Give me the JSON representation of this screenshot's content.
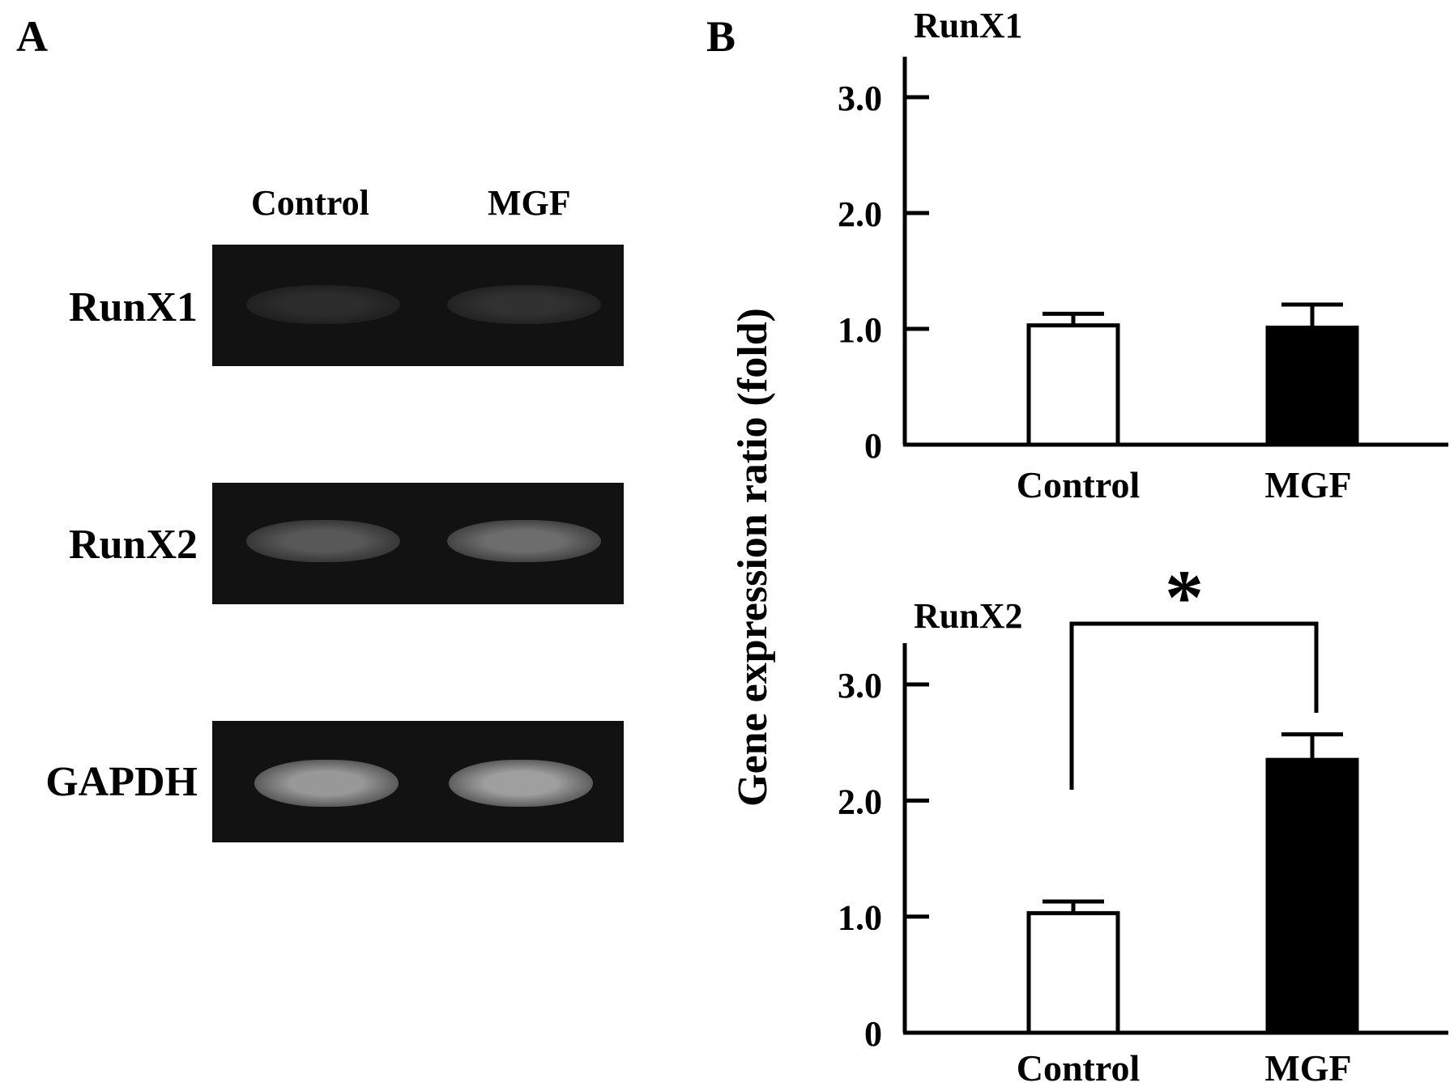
{
  "panels": {
    "a": "A",
    "b": "B"
  },
  "gel": {
    "lanes": [
      "Control",
      "MGF"
    ],
    "rows": [
      {
        "gene": "RunX1",
        "bands": [
          0.12,
          0.14
        ]
      },
      {
        "gene": "RunX2",
        "bands": [
          0.32,
          0.42
        ]
      },
      {
        "gene": "GAPDH",
        "bands": [
          0.62,
          0.65
        ]
      }
    ]
  },
  "colors": {
    "control_fill": "#ffffff",
    "mgf_fill": "#000000",
    "gel_bg": "#121212",
    "band": "#d9d9d9"
  },
  "y_axis_label": "Gene expression ratio (fold)",
  "chart_data": [
    {
      "type": "bar",
      "title": "RunX1",
      "categories": [
        "Control",
        "MGF"
      ],
      "values": [
        1.03,
        1.01
      ],
      "errors": [
        0.1,
        0.2
      ],
      "ylim": [
        0,
        3.3
      ],
      "yticks": [
        0,
        1.0,
        2.0,
        3.0
      ],
      "ytick_labels": [
        "0",
        "1.0",
        "2.0",
        "3.0"
      ],
      "annotation": null
    },
    {
      "type": "bar",
      "title": "RunX2",
      "categories": [
        "Control",
        "MGF"
      ],
      "values": [
        1.03,
        2.35
      ],
      "errors": [
        0.1,
        0.22
      ],
      "ylim": [
        0,
        3.3
      ],
      "yticks": [
        0,
        1.0,
        2.0,
        3.0
      ],
      "ytick_labels": [
        "0",
        "1.0",
        "2.0",
        "3.0"
      ],
      "annotation": {
        "text": "*",
        "between": [
          "Control",
          "MGF"
        ]
      }
    }
  ]
}
